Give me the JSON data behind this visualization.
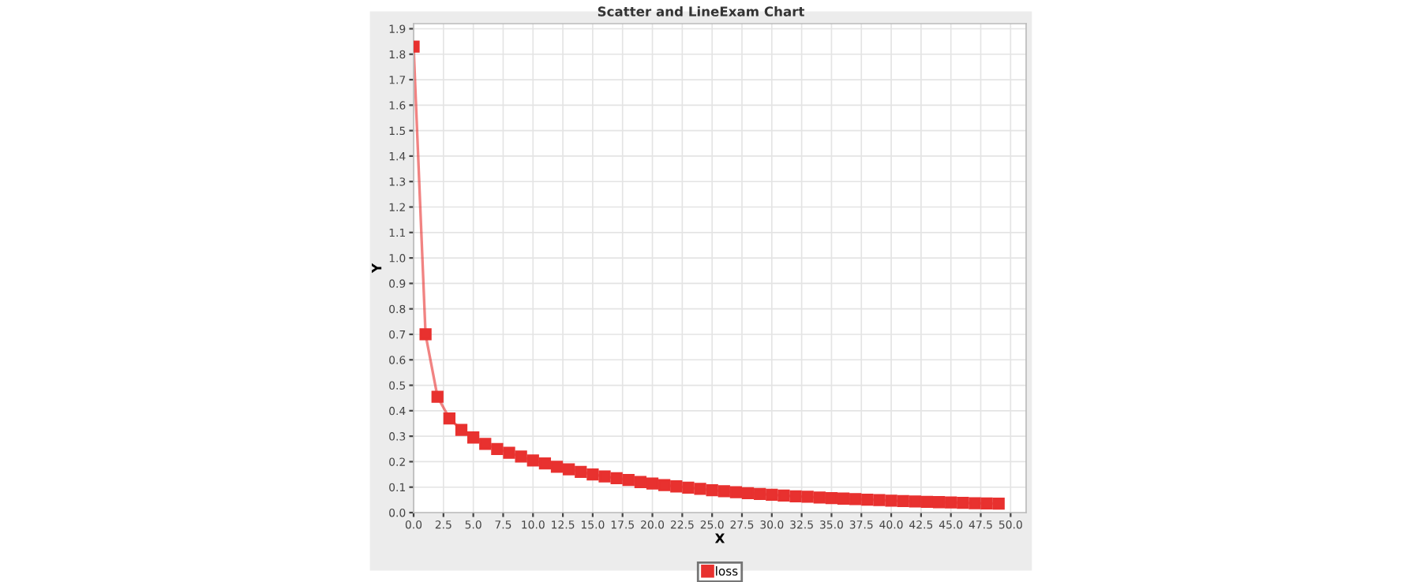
{
  "chart_data": {
    "type": "line",
    "title": "Scatter and LineExam Chart",
    "xlabel": "X",
    "ylabel": "Y",
    "x": [
      0,
      1,
      2,
      3,
      4,
      5,
      6,
      7,
      8,
      9,
      10,
      11,
      12,
      13,
      14,
      15,
      16,
      17,
      18,
      19,
      20,
      21,
      22,
      23,
      24,
      25,
      26,
      27,
      28,
      29,
      30,
      31,
      32,
      33,
      34,
      35,
      36,
      37,
      38,
      39,
      40,
      41,
      42,
      43,
      44,
      45,
      46,
      47,
      48,
      49
    ],
    "series": [
      {
        "name": "loss",
        "color": "#e8312f",
        "values": [
          1.83,
          0.7,
          0.455,
          0.37,
          0.325,
          0.295,
          0.27,
          0.25,
          0.235,
          0.22,
          0.205,
          0.193,
          0.18,
          0.17,
          0.16,
          0.15,
          0.142,
          0.135,
          0.128,
          0.12,
          0.114,
          0.108,
          0.103,
          0.098,
          0.093,
          0.088,
          0.084,
          0.08,
          0.076,
          0.073,
          0.07,
          0.067,
          0.064,
          0.062,
          0.059,
          0.057,
          0.055,
          0.053,
          0.051,
          0.049,
          0.047,
          0.045,
          0.044,
          0.042,
          0.041,
          0.04,
          0.038,
          0.037,
          0.036,
          0.035
        ]
      }
    ],
    "xlim": [
      0,
      51.3
    ],
    "ylim": [
      0,
      1.92
    ],
    "xticks": [
      {
        "value": 0,
        "label": "0.0"
      },
      {
        "value": 2.5,
        "label": "2.5"
      },
      {
        "value": 5,
        "label": "5.0"
      },
      {
        "value": 7.5,
        "label": "7.5"
      },
      {
        "value": 10,
        "label": "10.0"
      },
      {
        "value": 12.5,
        "label": "12.5"
      },
      {
        "value": 15,
        "label": "15.0"
      },
      {
        "value": 17.5,
        "label": "17.5"
      },
      {
        "value": 20,
        "label": "20.0"
      },
      {
        "value": 22.5,
        "label": "22.5"
      },
      {
        "value": 25,
        "label": "25.0"
      },
      {
        "value": 27.5,
        "label": "27.5"
      },
      {
        "value": 30,
        "label": "30.0"
      },
      {
        "value": 32.5,
        "label": "32.5"
      },
      {
        "value": 35,
        "label": "35.0"
      },
      {
        "value": 37.5,
        "label": "37.5"
      },
      {
        "value": 40,
        "label": "40.0"
      },
      {
        "value": 42.5,
        "label": "42.5"
      },
      {
        "value": 45,
        "label": "45.0"
      },
      {
        "value": 47.5,
        "label": "47.5"
      },
      {
        "value": 50,
        "label": "50.0"
      }
    ],
    "yticks": [
      {
        "value": 0,
        "label": "0.0"
      },
      0.1,
      0.2,
      0.3,
      0.4,
      0.5,
      0.6,
      0.7,
      0.8,
      0.9,
      {
        "value": 1,
        "label": "1.0"
      },
      1.1,
      1.2,
      1.3,
      1.4,
      1.5,
      1.6,
      1.7,
      1.8,
      1.9
    ],
    "grid": true,
    "legend": "bottom",
    "marker": "square",
    "line_style": "solid"
  }
}
